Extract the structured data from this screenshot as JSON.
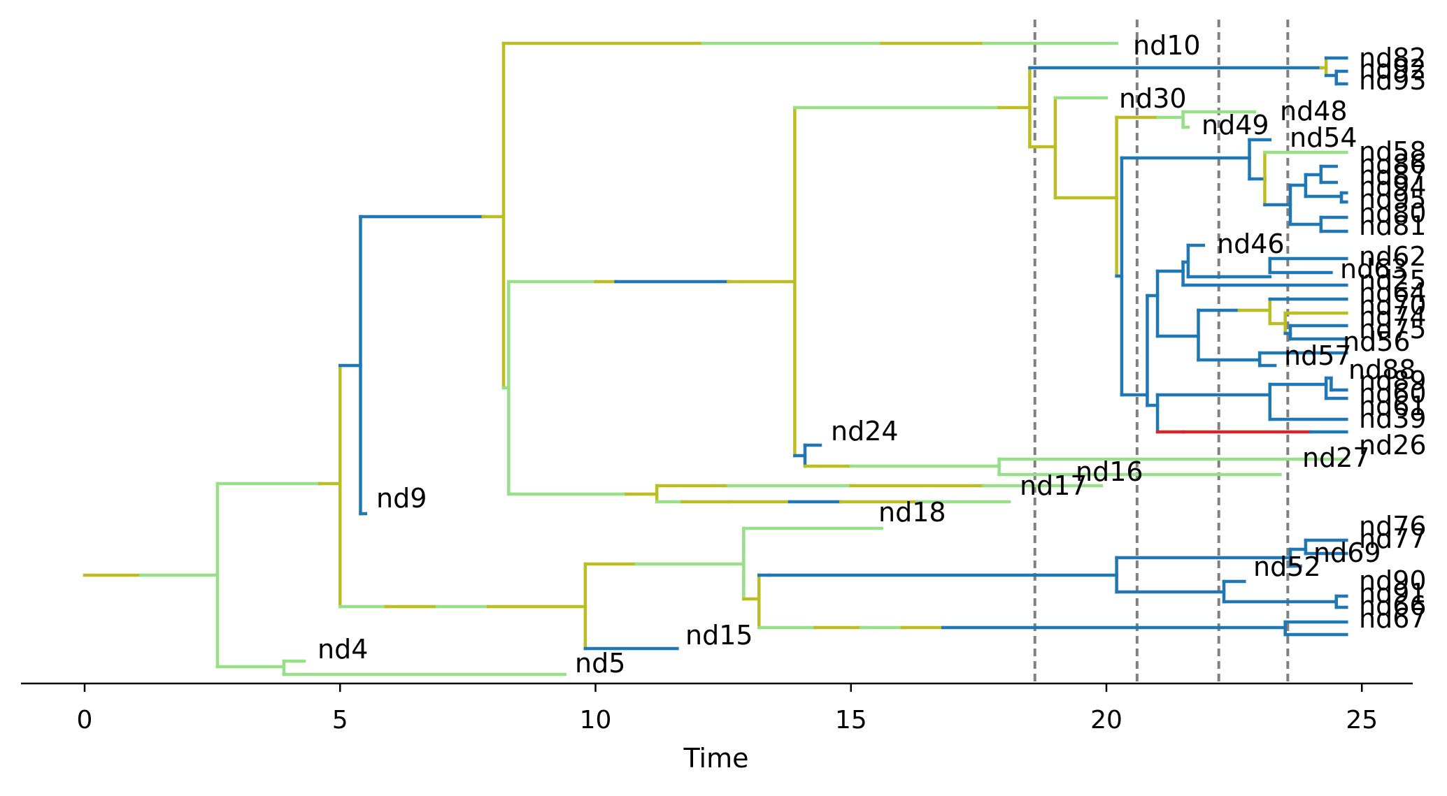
{
  "axis": {
    "xlabel": "Time",
    "ticks": [
      0,
      5,
      10,
      15,
      20,
      25
    ],
    "xlim": [
      -1.25,
      26.2
    ]
  },
  "shift_times": [
    18.6,
    20.6,
    22.2,
    23.55
  ],
  "state_colors": {
    "olive": "#bcbd22",
    "lightgreen": "#98df8a",
    "blue": "#1f77b4",
    "red": "#d62728",
    "shift_line": "#808080"
  },
  "tips": [
    "nd10",
    "nd82",
    "nd92",
    "nd93",
    "nd30",
    "nd48",
    "nd49",
    "nd54",
    "nd58",
    "nd86",
    "nd87",
    "nd94",
    "nd95",
    "nd80",
    "nd81",
    "nd46",
    "nd62",
    "nd63",
    "nd25",
    "nd64",
    "nd70",
    "nd74",
    "nd75",
    "nd56",
    "nd57",
    "nd88",
    "nd89",
    "nd60",
    "nd61",
    "nd39",
    "nd24",
    "nd26",
    "nd27",
    "nd16",
    "nd17",
    "nd9",
    "nd18",
    "nd76",
    "nd77",
    "nd69",
    "nd52",
    "nd90",
    "nd91",
    "nd66",
    "nd67",
    "nd15",
    "nd4",
    "nd5"
  ]
}
